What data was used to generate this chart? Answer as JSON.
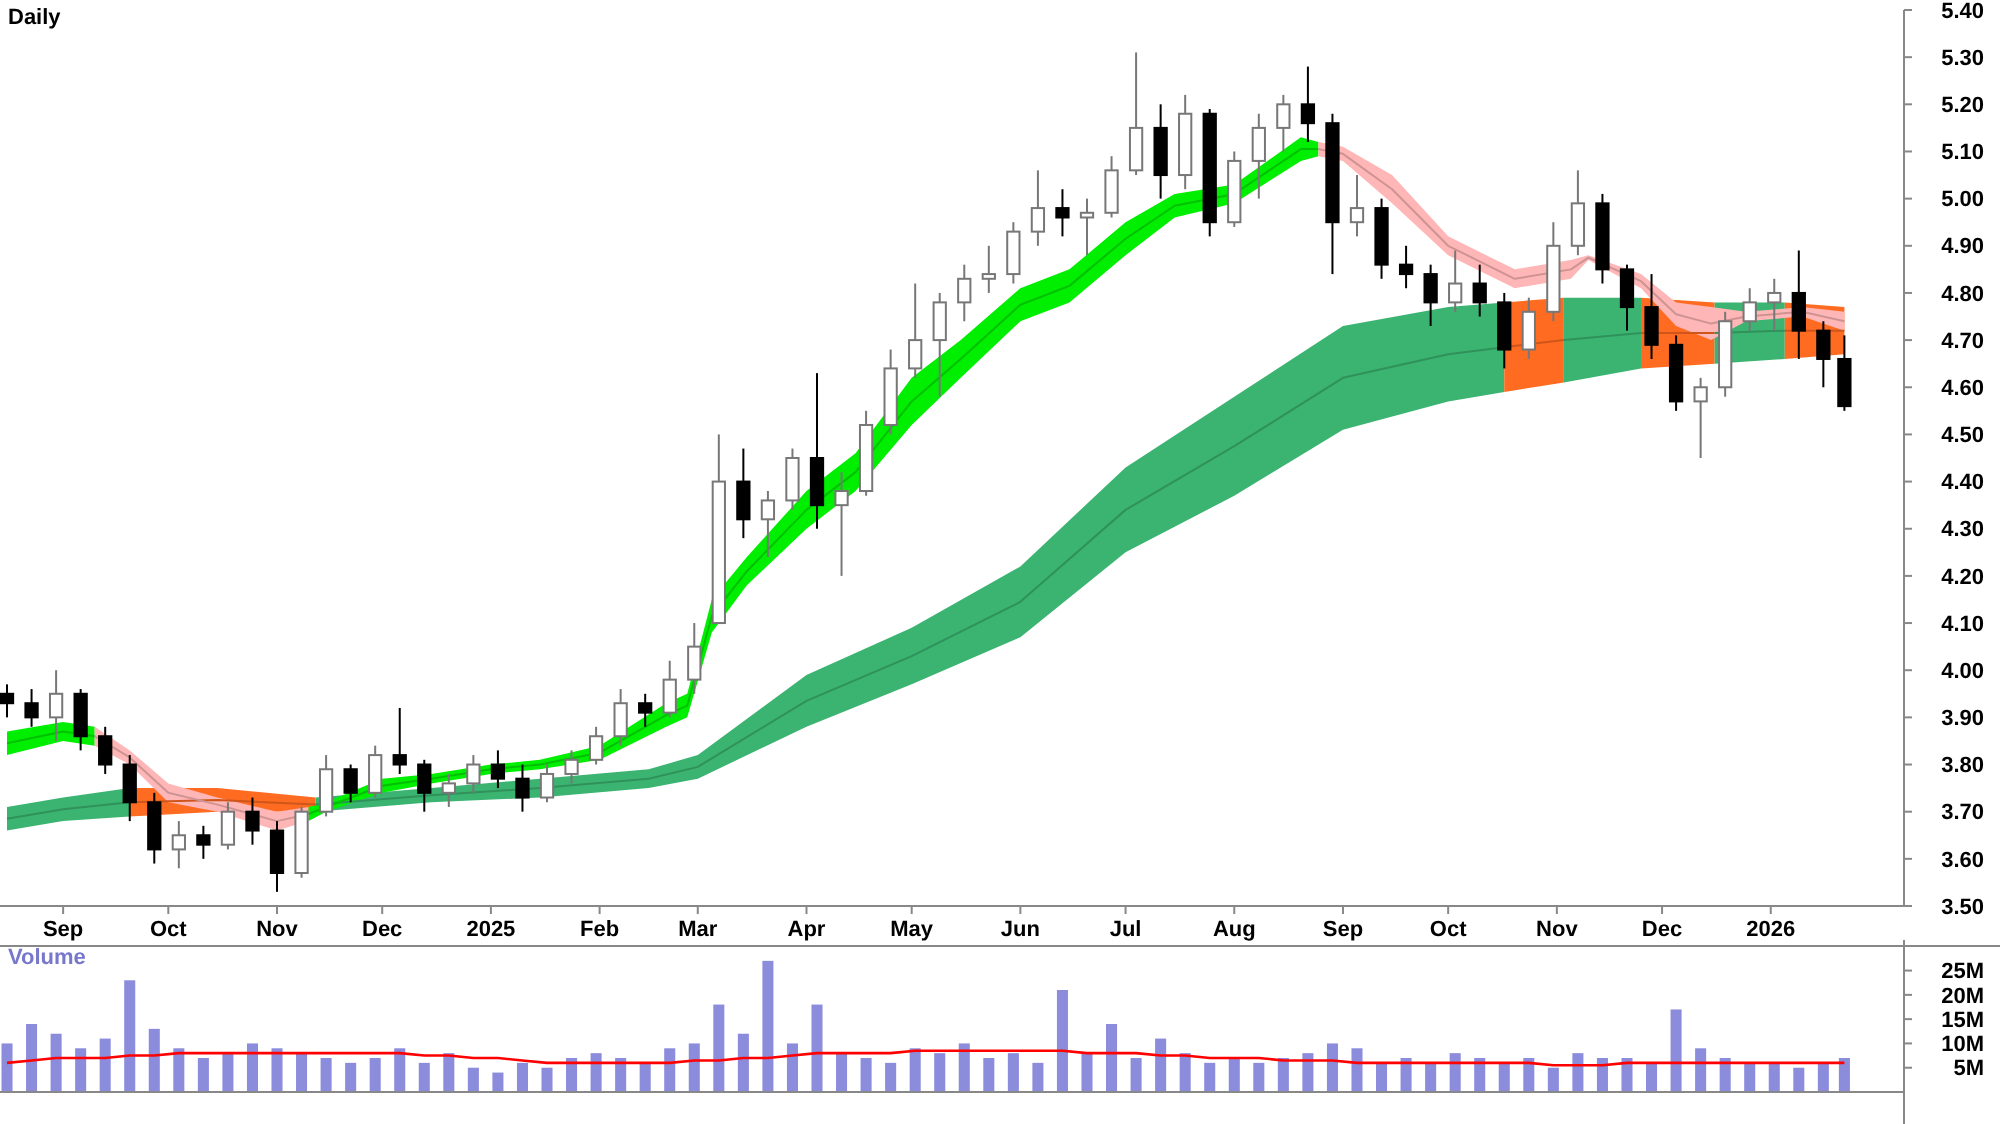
{
  "chart_data": [
    {
      "type": "candlestick",
      "title": "Daily",
      "xlim": [
        "2024-08-14",
        "2026-02-08"
      ],
      "xticks": [
        {
          "value": "2024-09-01",
          "label": "Sep"
        },
        {
          "value": "2024-10-01",
          "label": "Oct"
        },
        {
          "value": "2024-11-01",
          "label": "Nov"
        },
        {
          "value": "2024-12-01",
          "label": "Dec"
        },
        {
          "value": "2025-01-01",
          "label": "2025"
        },
        {
          "value": "2025-02-01",
          "label": "Feb"
        },
        {
          "value": "2025-03-01",
          "label": "Mar"
        },
        {
          "value": "2025-04-01",
          "label": "Apr"
        },
        {
          "value": "2025-05-01",
          "label": "May"
        },
        {
          "value": "2025-06-01",
          "label": "Jun"
        },
        {
          "value": "2025-07-01",
          "label": "Jul"
        },
        {
          "value": "2025-08-01",
          "label": "Aug"
        },
        {
          "value": "2025-09-01",
          "label": "Sep"
        },
        {
          "value": "2025-10-01",
          "label": "Oct"
        },
        {
          "value": "2025-11-01",
          "label": "Nov"
        },
        {
          "value": "2025-12-01",
          "label": "Dec"
        },
        {
          "value": "2026-01-01",
          "label": "2026"
        }
      ],
      "ylim": [
        3.5,
        5.4
      ],
      "yticks": [
        {
          "value": 3.5,
          "label": "3.50"
        },
        {
          "value": 3.6,
          "label": "3.60"
        },
        {
          "value": 3.7,
          "label": "3.70"
        },
        {
          "value": 3.8,
          "label": "3.80"
        },
        {
          "value": 3.9,
          "label": "3.90"
        },
        {
          "value": 4.0,
          "label": "4.00"
        },
        {
          "value": 4.1,
          "label": "4.10"
        },
        {
          "value": 4.2,
          "label": "4.20"
        },
        {
          "value": 4.3,
          "label": "4.30"
        },
        {
          "value": 4.4,
          "label": "4.40"
        },
        {
          "value": 4.5,
          "label": "4.50"
        },
        {
          "value": 4.6,
          "label": "4.60"
        },
        {
          "value": 4.7,
          "label": "4.70"
        },
        {
          "value": 4.8,
          "label": "4.80"
        },
        {
          "value": 4.9,
          "label": "4.90"
        },
        {
          "value": 5.0,
          "label": "5.00"
        },
        {
          "value": 5.1,
          "label": "5.10"
        },
        {
          "value": 5.2,
          "label": "5.20"
        },
        {
          "value": 5.3,
          "label": "5.30"
        },
        {
          "value": 5.4,
          "label": "5.40"
        }
      ],
      "grid": false,
      "x": [
        "2024-08-16",
        "2024-08-23",
        "2024-08-30",
        "2024-09-06",
        "2024-09-13",
        "2024-09-20",
        "2024-09-27",
        "2024-10-04",
        "2024-10-11",
        "2024-10-18",
        "2024-10-25",
        "2024-11-01",
        "2024-11-08",
        "2024-11-15",
        "2024-11-22",
        "2024-11-29",
        "2024-12-06",
        "2024-12-13",
        "2024-12-20",
        "2024-12-27",
        "2025-01-03",
        "2025-01-10",
        "2025-01-17",
        "2025-01-24",
        "2025-01-31",
        "2025-02-07",
        "2025-02-14",
        "2025-02-21",
        "2025-02-28",
        "2025-03-07",
        "2025-03-14",
        "2025-03-21",
        "2025-03-28",
        "2025-04-04",
        "2025-04-11",
        "2025-04-18",
        "2025-04-25",
        "2025-05-02",
        "2025-05-09",
        "2025-05-16",
        "2025-05-23",
        "2025-05-30",
        "2025-06-06",
        "2025-06-13",
        "2025-06-20",
        "2025-06-27",
        "2025-07-04",
        "2025-07-11",
        "2025-07-18",
        "2025-07-25",
        "2025-08-01",
        "2025-08-08",
        "2025-08-15",
        "2025-08-22",
        "2025-08-29",
        "2025-09-05",
        "2025-09-12",
        "2025-09-19",
        "2025-09-26",
        "2025-10-03",
        "2025-10-10",
        "2025-10-17",
        "2025-10-24",
        "2025-10-31",
        "2025-11-07",
        "2025-11-14",
        "2025-11-21",
        "2025-11-28",
        "2025-12-05",
        "2025-12-12",
        "2025-12-19",
        "2025-12-26",
        "2026-01-02",
        "2026-01-09",
        "2026-01-16",
        "2026-01-22"
      ],
      "ohlc": [
        [
          3.95,
          3.97,
          3.9,
          3.93
        ],
        [
          3.93,
          3.96,
          3.88,
          3.9
        ],
        [
          3.9,
          4.0,
          3.85,
          3.95
        ],
        [
          3.95,
          3.96,
          3.83,
          3.86
        ],
        [
          3.86,
          3.88,
          3.78,
          3.8
        ],
        [
          3.8,
          3.82,
          3.68,
          3.72
        ],
        [
          3.72,
          3.74,
          3.59,
          3.62
        ],
        [
          3.62,
          3.68,
          3.58,
          3.65
        ],
        [
          3.65,
          3.67,
          3.6,
          3.63
        ],
        [
          3.63,
          3.72,
          3.62,
          3.7
        ],
        [
          3.7,
          3.73,
          3.63,
          3.66
        ],
        [
          3.66,
          3.68,
          3.53,
          3.57
        ],
        [
          3.57,
          3.71,
          3.56,
          3.7
        ],
        [
          3.7,
          3.82,
          3.69,
          3.79
        ],
        [
          3.79,
          3.8,
          3.72,
          3.74
        ],
        [
          3.74,
          3.84,
          3.73,
          3.82
        ],
        [
          3.82,
          3.92,
          3.78,
          3.8
        ],
        [
          3.8,
          3.81,
          3.7,
          3.74
        ],
        [
          3.74,
          3.78,
          3.71,
          3.76
        ],
        [
          3.76,
          3.82,
          3.74,
          3.8
        ],
        [
          3.8,
          3.83,
          3.75,
          3.77
        ],
        [
          3.77,
          3.8,
          3.7,
          3.73
        ],
        [
          3.73,
          3.8,
          3.72,
          3.78
        ],
        [
          3.78,
          3.83,
          3.76,
          3.81
        ],
        [
          3.81,
          3.88,
          3.8,
          3.86
        ],
        [
          3.86,
          3.96,
          3.84,
          3.93
        ],
        [
          3.93,
          3.95,
          3.88,
          3.91
        ],
        [
          3.91,
          4.02,
          3.9,
          3.98
        ],
        [
          3.98,
          4.1,
          3.95,
          4.05
        ],
        [
          4.1,
          4.5,
          4.1,
          4.4
        ],
        [
          4.4,
          4.47,
          4.28,
          4.32
        ],
        [
          4.32,
          4.38,
          4.24,
          4.36
        ],
        [
          4.36,
          4.47,
          4.34,
          4.45
        ],
        [
          4.45,
          4.63,
          4.3,
          4.35
        ],
        [
          4.35,
          4.42,
          4.2,
          4.38
        ],
        [
          4.38,
          4.55,
          4.37,
          4.52
        ],
        [
          4.52,
          4.68,
          4.5,
          4.64
        ],
        [
          4.64,
          4.82,
          4.62,
          4.7
        ],
        [
          4.7,
          4.8,
          4.58,
          4.78
        ],
        [
          4.78,
          4.86,
          4.74,
          4.83
        ],
        [
          4.83,
          4.9,
          4.8,
          4.84
        ],
        [
          4.84,
          4.95,
          4.82,
          4.93
        ],
        [
          4.93,
          5.06,
          4.9,
          4.98
        ],
        [
          4.98,
          5.02,
          4.92,
          4.96
        ],
        [
          4.96,
          5.0,
          4.88,
          4.97
        ],
        [
          4.97,
          5.09,
          4.96,
          5.06
        ],
        [
          5.06,
          5.31,
          5.05,
          5.15
        ],
        [
          5.15,
          5.2,
          5.0,
          5.05
        ],
        [
          5.05,
          5.22,
          5.02,
          5.18
        ],
        [
          5.18,
          5.19,
          4.92,
          4.95
        ],
        [
          4.95,
          5.1,
          4.94,
          5.08
        ],
        [
          5.08,
          5.18,
          5.0,
          5.15
        ],
        [
          5.15,
          5.22,
          5.1,
          5.2
        ],
        [
          5.2,
          5.28,
          5.12,
          5.16
        ],
        [
          5.16,
          5.18,
          4.84,
          4.95
        ],
        [
          4.95,
          5.05,
          4.92,
          4.98
        ],
        [
          4.98,
          5.0,
          4.83,
          4.86
        ],
        [
          4.86,
          4.9,
          4.81,
          4.84
        ],
        [
          4.84,
          4.86,
          4.73,
          4.78
        ],
        [
          4.78,
          4.89,
          4.76,
          4.82
        ],
        [
          4.82,
          4.86,
          4.75,
          4.78
        ],
        [
          4.78,
          4.8,
          4.64,
          4.68
        ],
        [
          4.68,
          4.79,
          4.66,
          4.76
        ],
        [
          4.76,
          4.95,
          4.74,
          4.9
        ],
        [
          4.9,
          5.06,
          4.88,
          4.99
        ],
        [
          4.99,
          5.01,
          4.82,
          4.85
        ],
        [
          4.85,
          4.86,
          4.72,
          4.77
        ],
        [
          4.77,
          4.84,
          4.66,
          4.69
        ],
        [
          4.69,
          4.71,
          4.55,
          4.57
        ],
        [
          4.57,
          4.62,
          4.45,
          4.6
        ],
        [
          4.6,
          4.76,
          4.58,
          4.74
        ],
        [
          4.74,
          4.81,
          4.72,
          4.78
        ],
        [
          4.78,
          4.83,
          4.72,
          4.8
        ],
        [
          4.8,
          4.89,
          4.66,
          4.72
        ],
        [
          4.72,
          4.74,
          4.6,
          4.66
        ],
        [
          4.66,
          4.71,
          4.55,
          4.56
        ]
      ],
      "series": [
        {
          "type": "line",
          "color": "#30915b",
          "x": [
            "2024-08-16",
            "2024-09-01",
            "2024-09-20"
          ],
          "values": [
            3.685,
            3.705,
            3.72
          ],
          "lower": [
            3.66,
            3.68,
            3.69
          ],
          "upper": [
            3.71,
            3.73,
            3.75
          ]
        },
        {
          "type": "line",
          "color": "#ce561b",
          "x": [
            "2024-09-20",
            "2024-10-15",
            "2024-11-12"
          ],
          "values": [
            3.72,
            3.725,
            3.715
          ],
          "lower": [
            3.69,
            3.7,
            3.7
          ],
          "upper": [
            3.75,
            3.75,
            3.73
          ]
        },
        {
          "type": "line",
          "color": "#30915b",
          "x": [
            "2024-11-12",
            "2024-12-15",
            "2025-01-15",
            "2025-02-15",
            "2025-03-01",
            "2025-04-01",
            "2025-05-01",
            "2025-06-01",
            "2025-07-01",
            "2025-08-01",
            "2025-09-01",
            "2025-10-01",
            "2025-10-17"
          ],
          "values": [
            3.715,
            3.735,
            3.75,
            3.77,
            3.795,
            3.935,
            4.03,
            4.145,
            4.34,
            4.475,
            4.62,
            4.67,
            4.685
          ],
          "lower": [
            3.7,
            3.72,
            3.73,
            3.75,
            3.77,
            3.88,
            3.97,
            4.07,
            4.25,
            4.37,
            4.51,
            4.57,
            4.59
          ],
          "upper": [
            3.73,
            3.75,
            3.77,
            3.79,
            3.82,
            3.99,
            4.09,
            4.22,
            4.43,
            4.58,
            4.73,
            4.77,
            4.78
          ]
        },
        {
          "type": "line",
          "color": "#ce561b",
          "x": [
            "2025-10-17",
            "2025-11-03"
          ],
          "values": [
            4.685,
            4.7
          ],
          "lower": [
            4.59,
            4.61
          ],
          "upper": [
            4.78,
            4.79
          ]
        },
        {
          "type": "line",
          "color": "#30915b",
          "x": [
            "2025-11-03",
            "2025-11-25"
          ],
          "values": [
            4.7,
            4.715
          ],
          "lower": [
            4.61,
            4.64
          ],
          "upper": [
            4.79,
            4.79
          ]
        },
        {
          "type": "line",
          "color": "#ce561b",
          "x": [
            "2025-11-25",
            "2025-12-16"
          ],
          "values": [
            4.715,
            4.715
          ],
          "lower": [
            4.64,
            4.65
          ],
          "upper": [
            4.79,
            4.78
          ]
        },
        {
          "type": "line",
          "color": "#30915b",
          "x": [
            "2025-12-16",
            "2026-01-05"
          ],
          "values": [
            4.715,
            4.72
          ],
          "lower": [
            4.65,
            4.66
          ],
          "upper": [
            4.78,
            4.78
          ]
        },
        {
          "type": "line",
          "color": "#ce561b",
          "x": [
            "2026-01-05",
            "2026-01-22"
          ],
          "values": [
            4.72,
            4.72
          ],
          "lower": [
            4.66,
            4.67
          ],
          "upper": [
            4.78,
            4.77
          ]
        },
        {
          "type": "line",
          "color": "#00c000",
          "x": [
            "2024-08-16",
            "2024-09-01",
            "2024-09-10"
          ],
          "values": [
            3.845,
            3.87,
            3.86
          ],
          "lower": [
            3.82,
            3.85,
            3.84
          ],
          "upper": [
            3.87,
            3.89,
            3.88
          ]
        },
        {
          "type": "line",
          "color": "#ce9393",
          "x": [
            "2024-09-10",
            "2024-09-20",
            "2024-10-01",
            "2024-10-15",
            "2024-11-01",
            "2024-11-10"
          ],
          "values": [
            3.86,
            3.815,
            3.74,
            3.715,
            3.68,
            3.695
          ],
          "lower": [
            3.84,
            3.8,
            3.72,
            3.7,
            3.66,
            3.68
          ],
          "upper": [
            3.88,
            3.83,
            3.76,
            3.73,
            3.7,
            3.71
          ]
        },
        {
          "type": "line",
          "color": "#00c000",
          "x": [
            "2024-11-10",
            "2024-11-15",
            "2024-12-01",
            "2024-12-15",
            "2025-01-01",
            "2025-01-15",
            "2025-02-01",
            "2025-02-20",
            "2025-02-26",
            "2025-03-05",
            "2025-03-15",
            "2025-04-01",
            "2025-04-15",
            "2025-05-01",
            "2025-05-15",
            "2025-06-01",
            "2025-06-15",
            "2025-07-01",
            "2025-07-15",
            "2025-08-01",
            "2025-08-20",
            "2025-08-25"
          ],
          "values": [
            3.695,
            3.71,
            3.755,
            3.77,
            3.79,
            3.8,
            3.825,
            3.905,
            3.925,
            4.115,
            4.21,
            4.34,
            4.42,
            4.57,
            4.66,
            4.775,
            4.815,
            4.915,
            4.985,
            5.01,
            5.105,
            5.105
          ],
          "lower": [
            3.68,
            3.7,
            3.74,
            3.76,
            3.78,
            3.79,
            3.81,
            3.88,
            3.9,
            4.08,
            4.18,
            4.3,
            4.38,
            4.52,
            4.62,
            4.74,
            4.78,
            4.88,
            4.96,
            4.99,
            5.08,
            5.09
          ],
          "upper": [
            3.71,
            3.72,
            3.77,
            3.78,
            3.8,
            3.81,
            3.84,
            3.93,
            3.95,
            4.15,
            4.24,
            4.38,
            4.46,
            4.62,
            4.7,
            4.81,
            4.85,
            4.95,
            5.01,
            5.03,
            5.13,
            5.12
          ]
        },
        {
          "type": "line",
          "color": "#ce9393",
          "x": [
            "2025-08-25",
            "2025-09-01",
            "2025-09-15",
            "2025-10-01",
            "2025-10-20",
            "2025-11-05",
            "2025-11-10",
            "2025-11-25",
            "2025-12-05",
            "2025-12-15",
            "2025-12-25",
            "2026-01-10",
            "2026-01-22"
          ],
          "values": [
            5.105,
            5.095,
            5.02,
            4.9,
            4.83,
            4.85,
            4.875,
            4.825,
            4.755,
            4.735,
            4.75,
            4.76,
            4.74
          ],
          "lower": [
            5.09,
            5.08,
            4.99,
            4.88,
            4.81,
            4.83,
            4.87,
            4.81,
            4.73,
            4.7,
            4.74,
            4.75,
            4.72
          ],
          "upper": [
            5.12,
            5.11,
            5.05,
            4.92,
            4.85,
            4.87,
            4.88,
            4.84,
            4.78,
            4.77,
            4.76,
            4.77,
            4.76
          ]
        }
      ]
    },
    {
      "type": "bar",
      "title": "Volume",
      "tick_labels": "y",
      "grid": false,
      "xlim": [
        "2024-08-14",
        "2026-02-08"
      ],
      "ylim": [
        0,
        28
      ],
      "yticks": [
        {
          "value": 5,
          "label": "5M"
        },
        {
          "value": 10,
          "label": "10M"
        },
        {
          "value": 15,
          "label": "15M"
        },
        {
          "value": 20,
          "label": "20M"
        },
        {
          "value": 25,
          "label": "25M"
        }
      ],
      "x": [
        "2024-08-16",
        "2024-08-23",
        "2024-08-30",
        "2024-09-06",
        "2024-09-13",
        "2024-09-20",
        "2024-09-27",
        "2024-10-04",
        "2024-10-11",
        "2024-10-18",
        "2024-10-25",
        "2024-11-01",
        "2024-11-08",
        "2024-11-15",
        "2024-11-22",
        "2024-11-29",
        "2024-12-06",
        "2024-12-13",
        "2024-12-20",
        "2024-12-27",
        "2025-01-03",
        "2025-01-10",
        "2025-01-17",
        "2025-01-24",
        "2025-01-31",
        "2025-02-07",
        "2025-02-14",
        "2025-02-21",
        "2025-02-28",
        "2025-03-07",
        "2025-03-14",
        "2025-03-21",
        "2025-03-28",
        "2025-04-04",
        "2025-04-11",
        "2025-04-18",
        "2025-04-25",
        "2025-05-02",
        "2025-05-09",
        "2025-05-16",
        "2025-05-23",
        "2025-05-30",
        "2025-06-06",
        "2025-06-13",
        "2025-06-20",
        "2025-06-27",
        "2025-07-04",
        "2025-07-11",
        "2025-07-18",
        "2025-07-25",
        "2025-08-01",
        "2025-08-08",
        "2025-08-15",
        "2025-08-22",
        "2025-08-29",
        "2025-09-05",
        "2025-09-12",
        "2025-09-19",
        "2025-09-26",
        "2025-10-03",
        "2025-10-10",
        "2025-10-17",
        "2025-10-24",
        "2025-10-31",
        "2025-11-07",
        "2025-11-14",
        "2025-11-21",
        "2025-11-28",
        "2025-12-05",
        "2025-12-12",
        "2025-12-19",
        "2025-12-26",
        "2026-01-02",
        "2026-01-09",
        "2026-01-16",
        "2026-01-22"
      ],
      "series": [
        {
          "type": "bar",
          "color": "#8c8cdc",
          "values": [
            10,
            14,
            12,
            9,
            11,
            23,
            13,
            9,
            7,
            8,
            10,
            9,
            8,
            7,
            6,
            7,
            9,
            6,
            8,
            5,
            4,
            6,
            5,
            7,
            8,
            7,
            6,
            9,
            10,
            18,
            12,
            27,
            10,
            18,
            8,
            7,
            6,
            9,
            8,
            10,
            7,
            8,
            6,
            21,
            8,
            14,
            7,
            11,
            8,
            6,
            7,
            6,
            7,
            8,
            10,
            9,
            6,
            7,
            6,
            8,
            7,
            6,
            7,
            5,
            8,
            7,
            7,
            6,
            17,
            9,
            7,
            6,
            6,
            5,
            6,
            7
          ]
        },
        {
          "type": "line",
          "color": "#ff0000",
          "values": [
            6,
            6.5,
            7,
            7,
            7,
            7.5,
            7.5,
            8,
            8,
            8,
            8,
            8,
            8,
            8,
            8,
            8,
            8,
            7.5,
            7.5,
            7,
            7,
            6.5,
            6,
            6,
            6,
            6,
            6,
            6,
            6.5,
            6.5,
            7,
            7,
            7.5,
            8,
            8,
            8,
            8,
            8.5,
            8.5,
            8.5,
            8.5,
            8.5,
            8.5,
            8.5,
            8,
            8,
            8,
            7.5,
            7.5,
            7,
            7,
            7,
            6.5,
            6.5,
            6.5,
            6,
            6,
            6,
            6,
            6,
            6,
            6,
            6,
            5.5,
            5.5,
            5.5,
            6,
            6,
            6,
            6,
            6,
            6,
            6,
            6,
            6,
            6
          ]
        }
      ]
    }
  ]
}
